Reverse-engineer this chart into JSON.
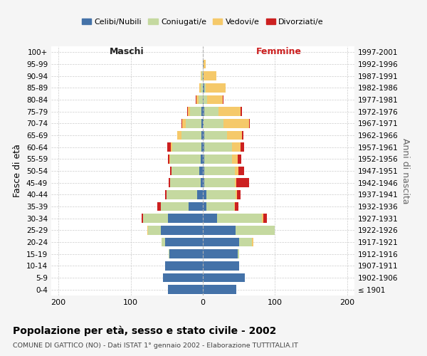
{
  "age_groups": [
    "100+",
    "95-99",
    "90-94",
    "85-89",
    "80-84",
    "75-79",
    "70-74",
    "65-69",
    "60-64",
    "55-59",
    "50-54",
    "45-49",
    "40-44",
    "35-39",
    "30-34",
    "25-29",
    "20-24",
    "15-19",
    "10-14",
    "5-9",
    "0-4"
  ],
  "birth_years": [
    "≤ 1901",
    "1902-1906",
    "1907-1911",
    "1912-1916",
    "1917-1921",
    "1922-1926",
    "1927-1931",
    "1932-1936",
    "1937-1941",
    "1942-1946",
    "1947-1951",
    "1952-1956",
    "1957-1961",
    "1962-1966",
    "1967-1971",
    "1972-1976",
    "1977-1981",
    "1982-1986",
    "1987-1991",
    "1992-1996",
    "1997-2001"
  ],
  "maschi": {
    "celibi": [
      0,
      0,
      0,
      0,
      0,
      2,
      2,
      2,
      2,
      3,
      5,
      3,
      8,
      20,
      48,
      58,
      52,
      46,
      52,
      55,
      48
    ],
    "coniugati": [
      0,
      0,
      2,
      3,
      6,
      16,
      22,
      28,
      40,
      42,
      38,
      42,
      42,
      38,
      35,
      18,
      5,
      1,
      0,
      0,
      0
    ],
    "vedovi": [
      0,
      0,
      1,
      2,
      3,
      3,
      5,
      5,
      2,
      1,
      0,
      0,
      0,
      0,
      0,
      1,
      0,
      0,
      0,
      0,
      0
    ],
    "divorziati": [
      0,
      0,
      0,
      0,
      1,
      1,
      1,
      0,
      5,
      2,
      2,
      2,
      2,
      5,
      2,
      0,
      0,
      0,
      0,
      0,
      0
    ]
  },
  "femmine": {
    "nubili": [
      0,
      1,
      1,
      2,
      1,
      2,
      1,
      2,
      2,
      2,
      2,
      2,
      5,
      5,
      20,
      45,
      50,
      48,
      50,
      58,
      46
    ],
    "coniugate": [
      0,
      0,
      0,
      2,
      5,
      20,
      28,
      32,
      38,
      38,
      42,
      42,
      40,
      38,
      62,
      55,
      18,
      2,
      0,
      0,
      0
    ],
    "vedove": [
      0,
      3,
      18,
      28,
      22,
      30,
      35,
      20,
      12,
      8,
      5,
      2,
      2,
      1,
      2,
      0,
      2,
      0,
      0,
      0,
      0
    ],
    "divorziate": [
      0,
      0,
      0,
      0,
      1,
      2,
      1,
      2,
      5,
      5,
      8,
      18,
      5,
      5,
      5,
      0,
      0,
      0,
      0,
      0,
      0
    ]
  },
  "colors": {
    "celibi_nubili": "#4472a8",
    "coniugati": "#c5d9a0",
    "vedovi": "#f5c96a",
    "divorziati": "#cc2020"
  },
  "xlim": [
    -210,
    210
  ],
  "xticks": [
    -200,
    -100,
    0,
    100,
    200
  ],
  "xticklabels": [
    "200",
    "100",
    "0",
    "100",
    "200"
  ],
  "title": "Popolazione per età, sesso e stato civile - 2002",
  "subtitle": "COMUNE DI GATTICO (NO) - Dati ISTAT 1° gennaio 2002 - Elaborazione TUTTITALIA.IT",
  "ylabel_left": "Fasce di età",
  "ylabel_right": "Anni di nascita",
  "label_maschi": "Maschi",
  "label_femmine": "Femmine",
  "bg_color": "#f5f5f5",
  "plot_bg": "#ffffff",
  "legend_labels": [
    "Celibi/Nubili",
    "Coniugati/e",
    "Vedovi/e",
    "Divorziati/e"
  ]
}
